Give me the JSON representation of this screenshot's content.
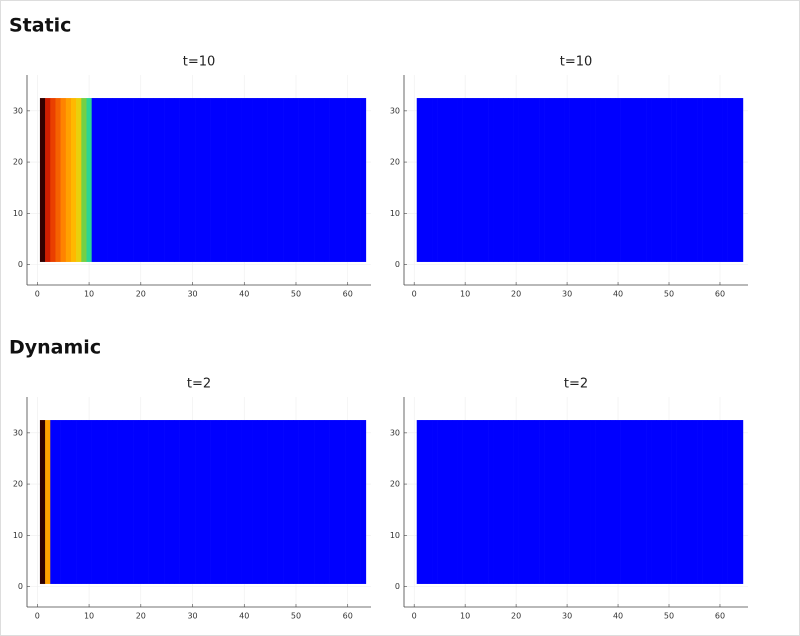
{
  "headings": [
    "Static",
    "Dynamic"
  ],
  "chart_data": [
    {
      "type": "heatmap",
      "title": "t=10",
      "xlim": [
        -2,
        64.5
      ],
      "ylim": [
        -4,
        37
      ],
      "yrange": [
        0.5,
        32.5
      ],
      "xticks": [
        0,
        10,
        20,
        30,
        40,
        50,
        60
      ],
      "yticks": [
        0,
        10,
        20,
        30
      ],
      "grid": true,
      "clim": [
        0,
        1
      ],
      "colormap": [
        "#0000ff",
        "#00e0ff",
        "#40d060",
        "#ffd000",
        "#ff8000",
        "#e02000",
        "#300000"
      ],
      "x": [
        1,
        2,
        3,
        4,
        5,
        6,
        7,
        8,
        9,
        10,
        11,
        12,
        13,
        14,
        15,
        16,
        17,
        18,
        19,
        20,
        21,
        22,
        23,
        24,
        25,
        26,
        27,
        28,
        29,
        30,
        31,
        32,
        33,
        34,
        35,
        36,
        37,
        38,
        39,
        40,
        41,
        42,
        43,
        44,
        45,
        46,
        47,
        48,
        49,
        50,
        51,
        52,
        53,
        54,
        55,
        56,
        57,
        58,
        59,
        60,
        61,
        62,
        63
      ],
      "values": [
        1,
        0.85,
        0.78,
        0.72,
        0.66,
        0.6,
        0.55,
        0.48,
        0.38,
        0.28,
        0,
        0,
        0,
        0,
        0,
        0,
        0,
        0,
        0,
        0,
        0,
        0,
        0,
        0,
        0,
        0,
        0,
        0,
        0,
        0,
        0,
        0,
        0,
        0,
        0,
        0,
        0,
        0,
        0,
        0,
        0,
        0,
        0,
        0,
        0,
        0,
        0,
        0,
        0,
        0,
        0,
        0,
        0,
        0,
        0,
        0,
        0,
        0,
        0,
        0,
        0,
        0,
        0
      ]
    },
    {
      "type": "heatmap",
      "title": "t=10",
      "xlim": [
        -2,
        65.5
      ],
      "ylim": [
        -4,
        37
      ],
      "yrange": [
        0.5,
        32.5
      ],
      "xticks": [
        0,
        10,
        20,
        30,
        40,
        50,
        60
      ],
      "yticks": [
        0,
        10,
        20,
        30
      ],
      "grid": true,
      "clim": [
        0,
        1
      ],
      "colormap": [
        "#0000ff",
        "#00e0ff",
        "#40d060",
        "#ffd000",
        "#ff8000",
        "#e02000",
        "#300000"
      ],
      "x": [
        1,
        2,
        3,
        4,
        5,
        6,
        7,
        8,
        9,
        10,
        11,
        12,
        13,
        14,
        15,
        16,
        17,
        18,
        19,
        20,
        21,
        22,
        23,
        24,
        25,
        26,
        27,
        28,
        29,
        30,
        31,
        32,
        33,
        34,
        35,
        36,
        37,
        38,
        39,
        40,
        41,
        42,
        43,
        44,
        45,
        46,
        47,
        48,
        49,
        50,
        51,
        52,
        53,
        54,
        55,
        56,
        57,
        58,
        59,
        60,
        61,
        62,
        63,
        64
      ],
      "values": [
        0,
        0,
        0,
        0,
        0,
        0,
        0,
        0,
        0,
        0,
        0,
        0,
        0,
        0,
        0,
        0,
        0,
        0,
        0,
        0,
        0,
        0,
        0,
        0,
        0,
        0,
        0,
        0,
        0,
        0,
        0,
        0,
        0,
        0,
        0,
        0,
        0,
        0,
        0,
        0,
        0,
        0,
        0,
        0,
        0,
        0,
        0,
        0,
        0,
        0,
        0,
        0,
        0,
        0,
        0,
        0,
        0,
        0,
        0,
        0,
        0,
        0,
        0,
        0
      ]
    },
    {
      "type": "heatmap",
      "title": "t=2",
      "xlim": [
        -2,
        64.5
      ],
      "ylim": [
        -4,
        37
      ],
      "yrange": [
        0.5,
        32.5
      ],
      "xticks": [
        0,
        10,
        20,
        30,
        40,
        50,
        60
      ],
      "yticks": [
        0,
        10,
        20,
        30
      ],
      "grid": true,
      "clim": [
        0,
        1
      ],
      "colormap": [
        "#0000ff",
        "#00e0ff",
        "#40d060",
        "#ffd000",
        "#ff8000",
        "#e02000",
        "#300000"
      ],
      "x": [
        1,
        2,
        3,
        4,
        5,
        6,
        7,
        8,
        9,
        10,
        11,
        12,
        13,
        14,
        15,
        16,
        17,
        18,
        19,
        20,
        21,
        22,
        23,
        24,
        25,
        26,
        27,
        28,
        29,
        30,
        31,
        32,
        33,
        34,
        35,
        36,
        37,
        38,
        39,
        40,
        41,
        42,
        43,
        44,
        45,
        46,
        47,
        48,
        49,
        50,
        51,
        52,
        53,
        54,
        55,
        56,
        57,
        58,
        59,
        60,
        61,
        62,
        63
      ],
      "values": [
        1,
        0.6,
        0,
        0,
        0,
        0,
        0,
        0,
        0,
        0,
        0,
        0,
        0,
        0,
        0,
        0,
        0,
        0,
        0,
        0,
        0,
        0,
        0,
        0,
        0,
        0,
        0,
        0,
        0,
        0,
        0,
        0,
        0,
        0,
        0,
        0,
        0,
        0,
        0,
        0,
        0,
        0,
        0,
        0,
        0,
        0,
        0,
        0,
        0,
        0,
        0,
        0,
        0,
        0,
        0,
        0,
        0,
        0,
        0,
        0,
        0,
        0,
        0
      ]
    },
    {
      "type": "heatmap",
      "title": "t=2",
      "xlim": [
        -2,
        65.5
      ],
      "ylim": [
        -4,
        37
      ],
      "yrange": [
        0.5,
        32.5
      ],
      "xticks": [
        0,
        10,
        20,
        30,
        40,
        50,
        60
      ],
      "yticks": [
        0,
        10,
        20,
        30
      ],
      "grid": true,
      "clim": [
        0,
        1
      ],
      "colormap": [
        "#0000ff",
        "#00e0ff",
        "#40d060",
        "#ffd000",
        "#ff8000",
        "#e02000",
        "#300000"
      ],
      "x": [
        1,
        2,
        3,
        4,
        5,
        6,
        7,
        8,
        9,
        10,
        11,
        12,
        13,
        14,
        15,
        16,
        17,
        18,
        19,
        20,
        21,
        22,
        23,
        24,
        25,
        26,
        27,
        28,
        29,
        30,
        31,
        32,
        33,
        34,
        35,
        36,
        37,
        38,
        39,
        40,
        41,
        42,
        43,
        44,
        45,
        46,
        47,
        48,
        49,
        50,
        51,
        52,
        53,
        54,
        55,
        56,
        57,
        58,
        59,
        60,
        61,
        62,
        63,
        64
      ],
      "values": [
        0,
        0,
        0,
        0,
        0,
        0,
        0,
        0,
        0,
        0,
        0,
        0,
        0,
        0,
        0,
        0,
        0,
        0,
        0,
        0,
        0,
        0,
        0,
        0,
        0,
        0,
        0,
        0,
        0,
        0,
        0,
        0,
        0,
        0,
        0,
        0,
        0,
        0,
        0,
        0,
        0,
        0,
        0,
        0,
        0,
        0,
        0,
        0,
        0,
        0,
        0,
        0,
        0,
        0,
        0,
        0,
        0,
        0,
        0,
        0,
        0,
        0,
        0,
        0
      ]
    }
  ]
}
